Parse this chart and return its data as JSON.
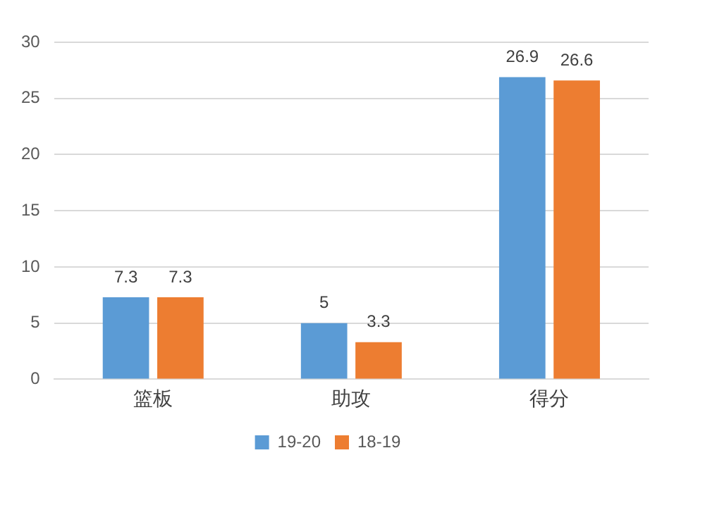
{
  "chart_data": {
    "type": "bar",
    "categories": [
      "篮板",
      "助攻",
      "得分"
    ],
    "series": [
      {
        "name": "19-20",
        "color": "#5b9bd5",
        "values": [
          7.3,
          5,
          26.9
        ]
      },
      {
        "name": "18-19",
        "color": "#ed7d31",
        "values": [
          7.3,
          3.3,
          26.6
        ]
      }
    ],
    "ylim": [
      0,
      30
    ],
    "yticks": [
      0,
      5,
      10,
      15,
      20,
      25,
      30
    ],
    "grid": "y",
    "legend": "bottom",
    "data_labels": true
  }
}
